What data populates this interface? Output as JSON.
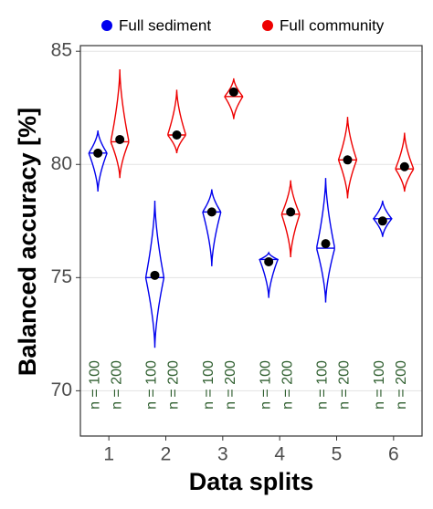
{
  "chart_data": {
    "type": "violin",
    "xlabel": "Data splits",
    "ylabel": "Balanced accuracy [%]",
    "categories": [
      "1",
      "2",
      "3",
      "4",
      "5",
      "6"
    ],
    "ylim": [
      68,
      85.25
    ],
    "yticks": [
      70,
      75,
      80,
      85
    ],
    "grid": true,
    "legend": "top",
    "series": [
      {
        "name": "Full sediment",
        "color": "#0000ee",
        "values": [
          80.5,
          75.1,
          77.9,
          75.7,
          76.5,
          77.5
        ],
        "min": [
          78.8,
          71.9,
          75.5,
          74.1,
          73.9,
          76.8
        ],
        "max": [
          81.5,
          78.4,
          78.9,
          76.1,
          79.4,
          78.4
        ],
        "median": [
          80.5,
          75.0,
          77.9,
          75.8,
          76.3,
          77.6
        ],
        "n_labels": [
          "n = 100",
          "n = 100",
          "n = 100",
          "n = 100",
          "n = 100",
          "n = 100"
        ]
      },
      {
        "name": "Full community",
        "color": "#ee0000",
        "values": [
          81.1,
          81.3,
          83.2,
          77.9,
          80.2,
          79.9
        ],
        "min": [
          79.4,
          80.5,
          82.0,
          75.9,
          78.5,
          78.8
        ],
        "max": [
          84.2,
          83.3,
          83.8,
          79.3,
          82.1,
          81.4
        ],
        "median": [
          81.0,
          81.3,
          83.0,
          77.8,
          80.2,
          79.8
        ],
        "n_labels": [
          "n = 200",
          "n = 200",
          "n = 200",
          "n = 200",
          "n = 200",
          "n = 200"
        ]
      }
    ]
  }
}
